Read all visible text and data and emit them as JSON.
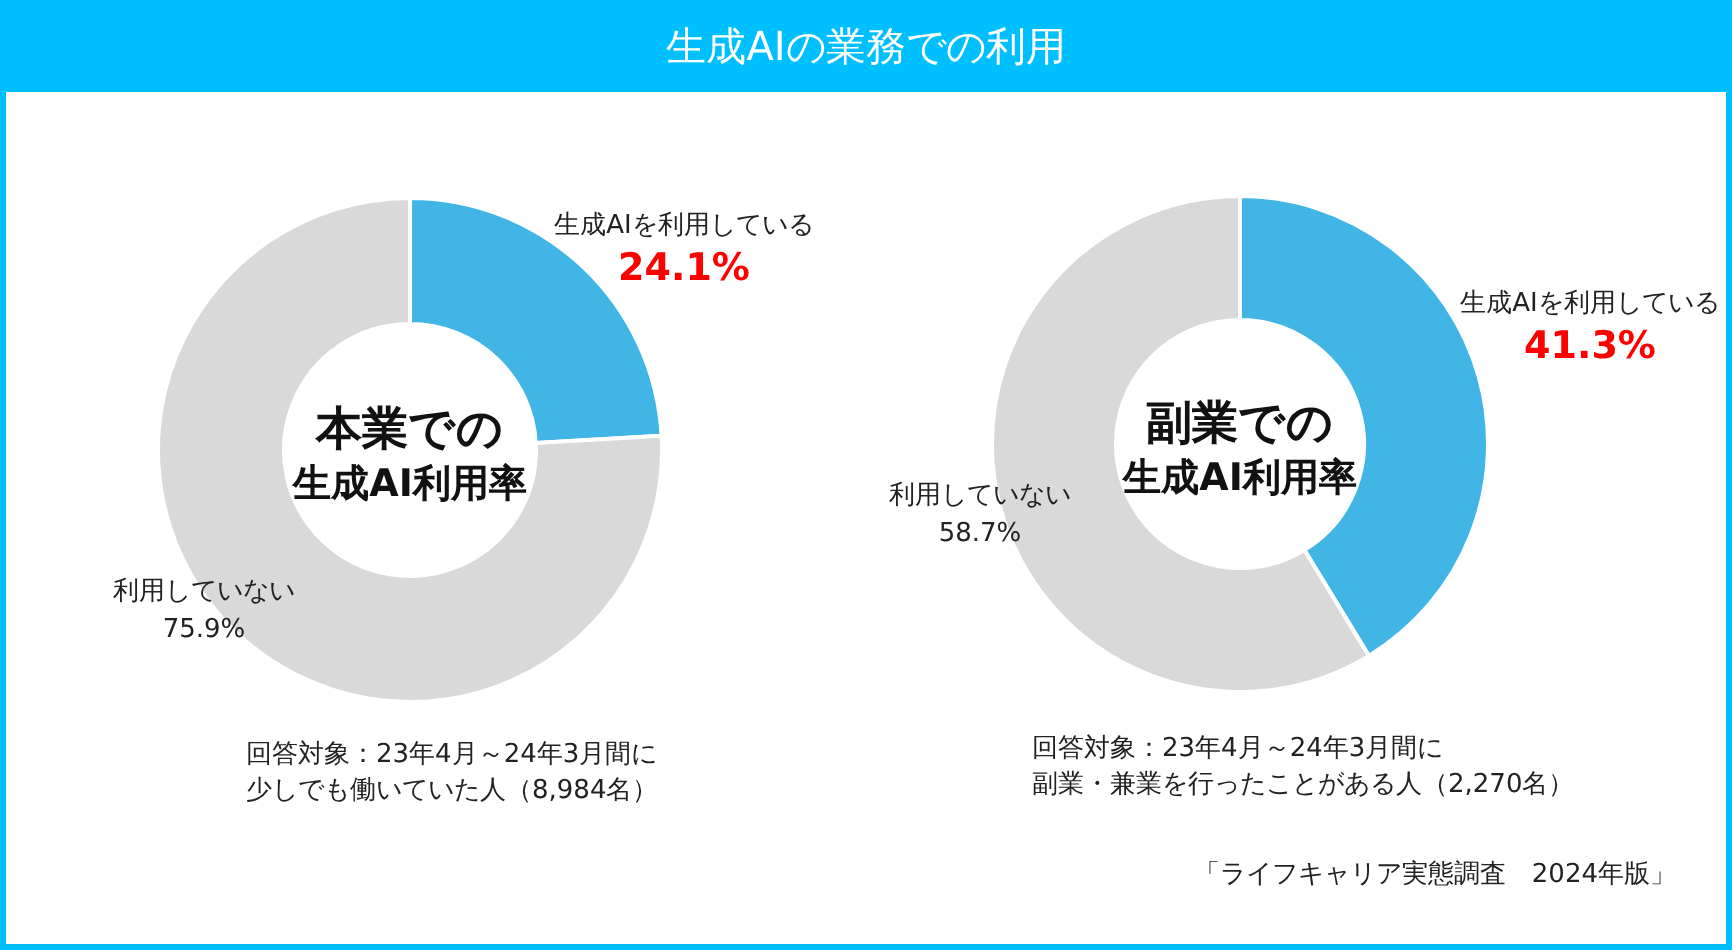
{
  "chart_data": [
    {
      "type": "donut",
      "title": "生成AIの業務での利用",
      "subtitle": "本業での生成AI利用率",
      "categories": [
        "生成AIを利用している",
        "利用していない"
      ],
      "values": [
        24.1,
        75.9
      ],
      "colors": [
        "#41b6e6",
        "#d9d9d9"
      ],
      "value_labels": [
        "24.1%",
        "75.9%"
      ],
      "annotations": [
        "回答対象：23年4月～24年3月間に少しでも働いていた人（8,984名）"
      ]
    },
    {
      "type": "donut",
      "subtitle": "副業での生成AI利用率",
      "categories": [
        "生成AIを利用している",
        "利用していない"
      ],
      "values": [
        41.3,
        58.7
      ],
      "colors": [
        "#41b6e6",
        "#d9d9d9"
      ],
      "value_labels": [
        "41.3%",
        "58.7%"
      ],
      "annotations": [
        "回答対象：23年4月～24年3月間に副業・兼業を行ったことがある人（2,270名）",
        "「ライフキャリア実態調査　2024年版」"
      ]
    }
  ]
}
